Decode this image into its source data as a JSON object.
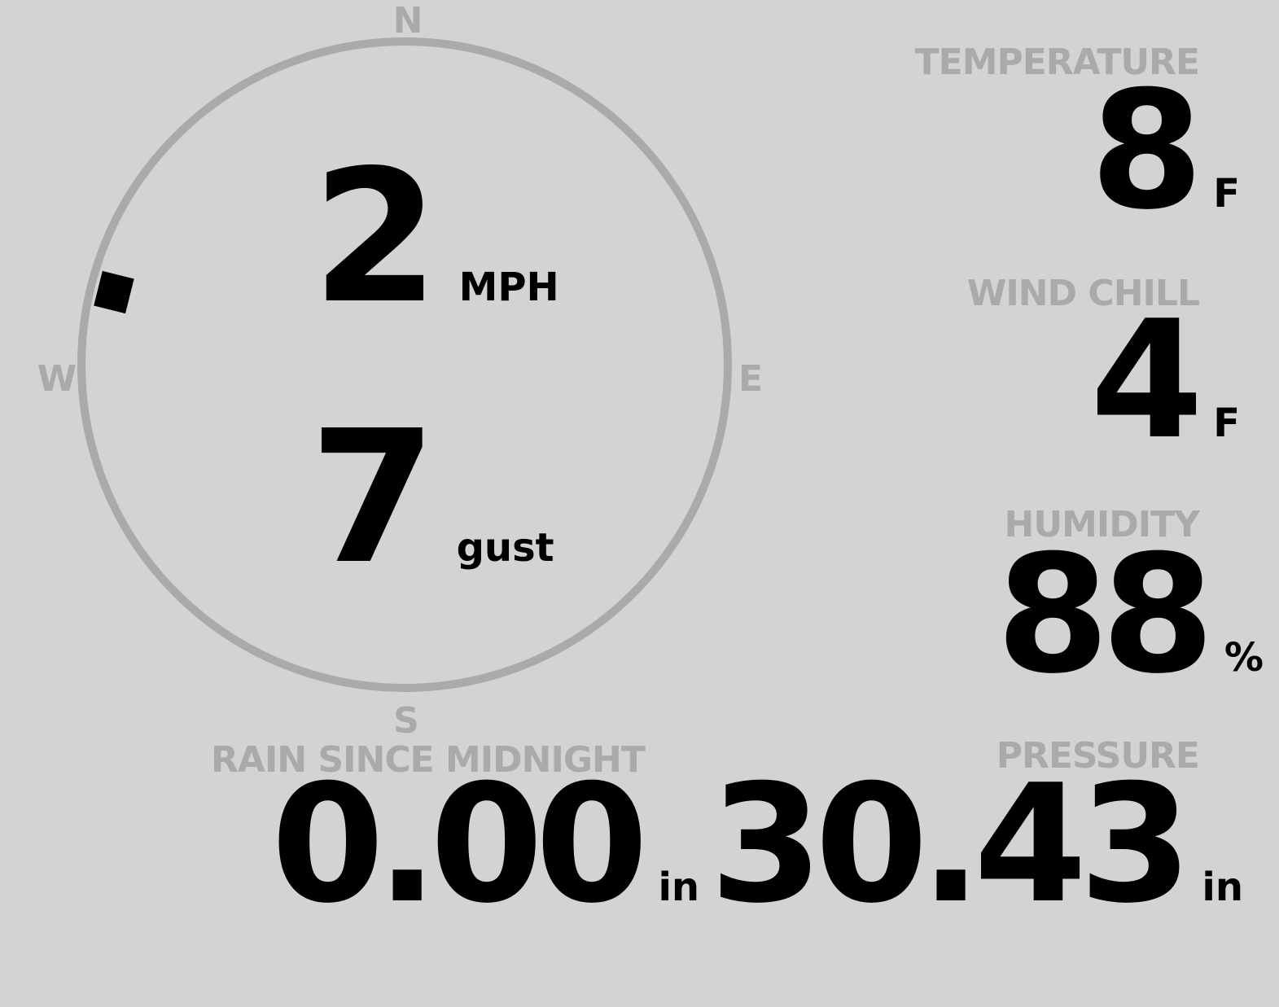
{
  "colors": {
    "background": "#d3d3d3",
    "label": "#aaaaaa",
    "value": "#000000",
    "compass_ring": "#aaaaaa",
    "direction_marker": "#000000"
  },
  "wind": {
    "compass": {
      "north": "N",
      "east": "E",
      "south": "S",
      "west": "W"
    },
    "direction_degrees": 284,
    "speed": "2",
    "speed_unit": "MPH",
    "gust": "7",
    "gust_unit": "gust"
  },
  "temperature": {
    "label": "TEMPERATURE",
    "value": "8",
    "unit": "F"
  },
  "wind_chill": {
    "label": "WIND CHILL",
    "value": "4",
    "unit": "F"
  },
  "humidity": {
    "label": "HUMIDITY",
    "value": "88",
    "unit": "%"
  },
  "rain": {
    "label": "RAIN SINCE MIDNIGHT",
    "value": "0.00",
    "unit": "in"
  },
  "pressure": {
    "label": "PRESSURE",
    "value": "30.43",
    "unit": "in"
  }
}
